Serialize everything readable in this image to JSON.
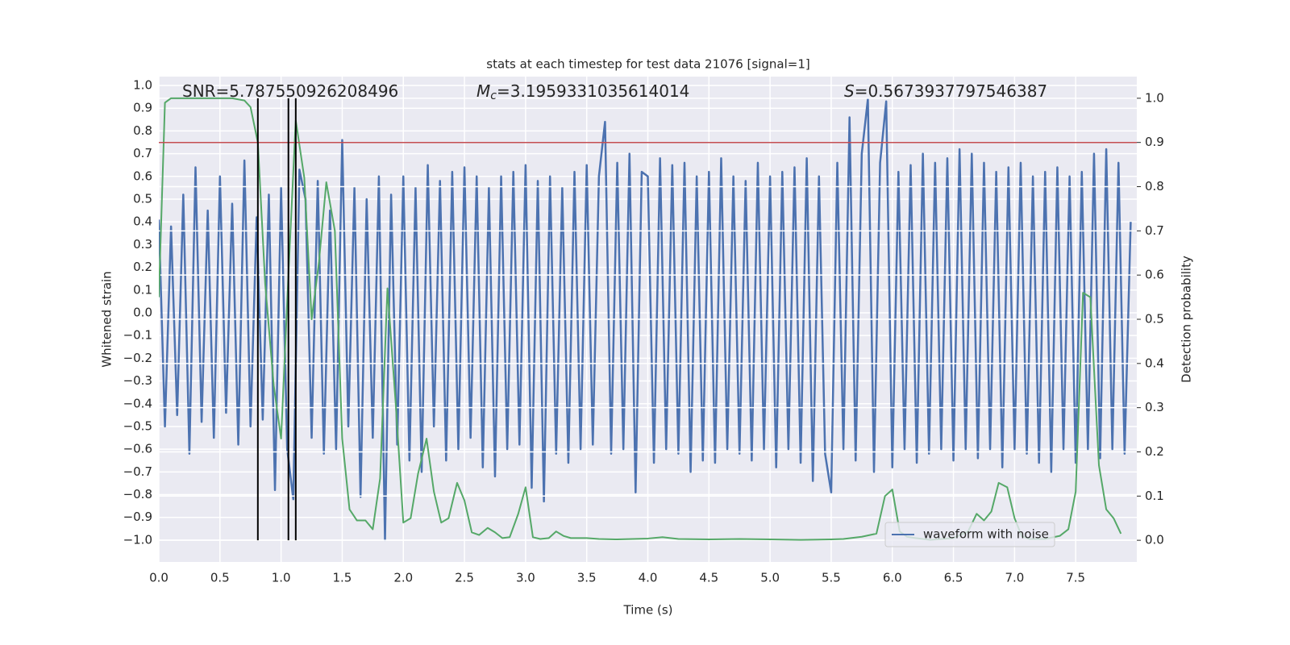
{
  "chart_data": {
    "type": "line",
    "title": "stats at each timestep for test data 21076 [signal=1]",
    "xlabel": "Time (s)",
    "ylabel": "Whitened strain",
    "y2label": "Detection probability",
    "xlim": [
      0,
      8.0
    ],
    "ylim": [
      -1.096,
      1.039
    ],
    "y2lim": [
      -0.049,
      1.049
    ],
    "xticks": [
      {
        "value": 0,
        "label": "0.0"
      },
      {
        "value": 0.5,
        "label": "0.5"
      },
      {
        "value": 1,
        "label": "1.0"
      },
      {
        "value": 1.5,
        "label": "1.5"
      },
      {
        "value": 2,
        "label": "2.0"
      },
      {
        "value": 2.5,
        "label": "2.5"
      },
      {
        "value": 3,
        "label": "3.0"
      },
      {
        "value": 3.5,
        "label": "3.5"
      },
      {
        "value": 4,
        "label": "4.0"
      },
      {
        "value": 4.5,
        "label": "4.5"
      },
      {
        "value": 5,
        "label": "5.0"
      },
      {
        "value": 5.5,
        "label": "5.5"
      },
      {
        "value": 6,
        "label": "6.0"
      },
      {
        "value": 6.5,
        "label": "6.5"
      },
      {
        "value": 7,
        "label": "7.0"
      },
      {
        "value": 7.5,
        "label": "7.5"
      }
    ],
    "yticks": [
      {
        "value": -1,
        "label": "−1.0"
      },
      {
        "value": -0.9,
        "label": "−0.9"
      },
      {
        "value": -0.8,
        "label": "−0.8"
      },
      {
        "value": -0.7,
        "label": "−0.7"
      },
      {
        "value": -0.6,
        "label": "−0.6"
      },
      {
        "value": -0.5,
        "label": "−0.5"
      },
      {
        "value": -0.4,
        "label": "−0.4"
      },
      {
        "value": -0.3,
        "label": "−0.3"
      },
      {
        "value": -0.2,
        "label": "−0.2"
      },
      {
        "value": -0.1,
        "label": "−0.1"
      },
      {
        "value": 0,
        "label": "0.0"
      },
      {
        "value": 0.1,
        "label": "0.1"
      },
      {
        "value": 0.2,
        "label": "0.2"
      },
      {
        "value": 0.3,
        "label": "0.3"
      },
      {
        "value": 0.4,
        "label": "0.4"
      },
      {
        "value": 0.5,
        "label": "0.5"
      },
      {
        "value": 0.6,
        "label": "0.6"
      },
      {
        "value": 0.7,
        "label": "0.7"
      },
      {
        "value": 0.8,
        "label": "0.8"
      },
      {
        "value": 0.9,
        "label": "0.9"
      },
      {
        "value": 1,
        "label": "1.0"
      }
    ],
    "y2ticks": [
      {
        "value": 0,
        "label": "0.0"
      },
      {
        "value": 0.1,
        "label": "0.1"
      },
      {
        "value": 0.2,
        "label": "0.2"
      },
      {
        "value": 0.3,
        "label": "0.3"
      },
      {
        "value": 0.4,
        "label": "0.4"
      },
      {
        "value": 0.5,
        "label": "0.5"
      },
      {
        "value": 0.6,
        "label": "0.6"
      },
      {
        "value": 0.7,
        "label": "0.7"
      },
      {
        "value": 0.8,
        "label": "0.8"
      },
      {
        "value": 0.9,
        "label": "0.9"
      },
      {
        "value": 1,
        "label": "1.0"
      }
    ],
    "grid": true,
    "legend_loc": "lower right",
    "annotations": [
      {
        "text": "SNR=5.787550926208496"
      },
      {
        "symbol": "M",
        "subscript": "c",
        "text": "=3.1959331035614014"
      },
      {
        "symbol": "S",
        "text": "=0.5673937797546387"
      }
    ],
    "hline": {
      "value": 0.9,
      "axis": "y2",
      "color": "#c44e52"
    },
    "vlines": {
      "x": [
        0.81,
        1.06,
        1.12
      ],
      "ymin": 0,
      "ymax": 1,
      "axis": "y2",
      "color": "#000000"
    },
    "series": [
      {
        "name": "waveform with noise",
        "color": "#4c72b0",
        "x": [
          0,
          0.05,
          0.1,
          0.15,
          0.2,
          0.25,
          0.3,
          0.35,
          0.4,
          0.45,
          0.5,
          0.55,
          0.6,
          0.65,
          0.7,
          0.75,
          0.8,
          0.85,
          0.9,
          0.95,
          1,
          1.05,
          1.1,
          1.15,
          1.2,
          1.25,
          1.3,
          1.35,
          1.4,
          1.45,
          1.5,
          1.55,
          1.6,
          1.65,
          1.7,
          1.75,
          1.8,
          1.85,
          1.9,
          1.95,
          2,
          2.05,
          2.1,
          2.15,
          2.2,
          2.25,
          2.3,
          2.35,
          2.4,
          2.45,
          2.5,
          2.55,
          2.6,
          2.65,
          2.7,
          2.75,
          2.8,
          2.85,
          2.9,
          2.95,
          3,
          3.05,
          3.1,
          3.15,
          3.2,
          3.25,
          3.3,
          3.35,
          3.4,
          3.45,
          3.5,
          3.55,
          3.6,
          3.65,
          3.7,
          3.75,
          3.8,
          3.85,
          3.9,
          3.95,
          4,
          4.05,
          4.1,
          4.15,
          4.2,
          4.25,
          4.3,
          4.35,
          4.4,
          4.45,
          4.5,
          4.55,
          4.6,
          4.65,
          4.7,
          4.75,
          4.8,
          4.85,
          4.9,
          4.95,
          5,
          5.05,
          5.1,
          5.15,
          5.2,
          5.25,
          5.3,
          5.35,
          5.4,
          5.45,
          5.5,
          5.55,
          5.6,
          5.65,
          5.7,
          5.75,
          5.8,
          5.85,
          5.9,
          5.95,
          6,
          6.05,
          6.1,
          6.15,
          6.2,
          6.25,
          6.3,
          6.35,
          6.4,
          6.45,
          6.5,
          6.55,
          6.6,
          6.65,
          6.7,
          6.75,
          6.8,
          6.85,
          6.9,
          6.95,
          7,
          7.05,
          7.1,
          7.15,
          7.2,
          7.25,
          7.3,
          7.35,
          7.4,
          7.45,
          7.5,
          7.55,
          7.6,
          7.65,
          7.7,
          7.75,
          7.8,
          7.85,
          7.9,
          7.95
        ],
        "values": [
          0.41,
          -0.5,
          0.38,
          -0.45,
          0.52,
          -0.62,
          0.64,
          -0.48,
          0.45,
          -0.55,
          0.6,
          -0.44,
          0.48,
          -0.58,
          0.67,
          -0.5,
          0.42,
          -0.47,
          0.52,
          -0.78,
          0.55,
          -0.6,
          -0.82,
          0.63,
          0.5,
          -0.55,
          0.58,
          -0.62,
          0.45,
          -0.6,
          0.76,
          -0.5,
          0.55,
          -0.81,
          0.5,
          -0.55,
          0.6,
          -1.0,
          0.52,
          -0.58,
          0.6,
          -0.65,
          0.55,
          -0.7,
          0.65,
          -0.5,
          0.58,
          -0.65,
          0.62,
          -0.6,
          0.64,
          -0.55,
          0.6,
          -0.68,
          0.55,
          -0.72,
          0.6,
          -0.6,
          0.62,
          -0.58,
          0.65,
          -0.77,
          0.58,
          -0.83,
          0.6,
          -0.62,
          0.55,
          -0.66,
          0.62,
          -0.6,
          0.65,
          -0.58,
          0.6,
          0.84,
          -0.62,
          0.66,
          -0.6,
          0.7,
          -0.79,
          0.62,
          0.6,
          -0.66,
          0.68,
          -0.6,
          0.65,
          -0.62,
          0.66,
          -0.7,
          0.6,
          -0.65,
          0.62,
          -0.66,
          0.68,
          -0.6,
          0.6,
          -0.62,
          0.58,
          -0.65,
          0.66,
          -0.6,
          0.6,
          -0.68,
          0.62,
          -0.6,
          0.64,
          -0.66,
          0.68,
          -0.74,
          0.6,
          -0.62,
          -0.79,
          0.66,
          -0.6,
          0.86,
          -0.65,
          0.7,
          0.94,
          -0.7,
          0.66,
          0.93,
          -0.68,
          0.62,
          -0.6,
          0.65,
          -0.66,
          0.7,
          -0.62,
          0.66,
          -0.6,
          0.68,
          -0.65,
          0.72,
          -0.6,
          0.7,
          -0.64,
          0.66,
          -0.6,
          0.62,
          -0.68,
          0.64,
          -0.6,
          0.66,
          -0.62,
          0.6,
          -0.66,
          0.62,
          -0.7,
          0.64,
          -0.6,
          0.6,
          -0.66,
          0.62,
          -0.6,
          0.7,
          -0.64,
          0.72,
          -0.6,
          0.66,
          -0.62,
          0.4
        ]
      },
      {
        "axis": "y2",
        "color": "#55a868",
        "x": [
          0,
          0.05,
          0.1,
          0.6,
          0.7,
          0.75,
          0.81,
          0.87,
          0.94,
          1.0,
          1.06,
          1.12,
          1.19,
          1.25,
          1.31,
          1.37,
          1.44,
          1.5,
          1.56,
          1.62,
          1.69,
          1.75,
          1.81,
          1.87,
          1.94,
          2.0,
          2.06,
          2.12,
          2.19,
          2.25,
          2.31,
          2.37,
          2.44,
          2.5,
          2.56,
          2.62,
          2.69,
          2.75,
          2.81,
          2.87,
          2.94,
          3.0,
          3.06,
          3.12,
          3.19,
          3.25,
          3.31,
          3.37,
          3.5,
          3.6,
          3.75,
          4.0,
          4.12,
          4.25,
          4.5,
          4.75,
          5.0,
          5.25,
          5.5,
          5.6,
          5.75,
          5.87,
          5.94,
          6.0,
          6.06,
          6.12,
          6.19,
          6.31,
          6.5,
          6.62,
          6.69,
          6.75,
          6.81,
          6.87,
          6.94,
          7.0,
          7.06,
          7.12,
          7.25,
          7.37,
          7.44,
          7.5,
          7.56,
          7.62,
          7.69,
          7.75,
          7.81,
          7.87
        ],
        "values": [
          0.55,
          0.99,
          1.0,
          1.0,
          0.995,
          0.98,
          0.9,
          0.58,
          0.35,
          0.23,
          0.6,
          0.95,
          0.82,
          0.5,
          0.63,
          0.81,
          0.7,
          0.23,
          0.07,
          0.045,
          0.045,
          0.025,
          0.14,
          0.57,
          0.3,
          0.04,
          0.05,
          0.15,
          0.23,
          0.11,
          0.04,
          0.05,
          0.13,
          0.09,
          0.018,
          0.012,
          0.028,
          0.018,
          0.005,
          0.007,
          0.06,
          0.12,
          0.007,
          0.003,
          0.005,
          0.02,
          0.01,
          0.005,
          0.005,
          0.003,
          0.002,
          0.004,
          0.007,
          0.003,
          0.002,
          0.003,
          0.002,
          0.001,
          0.002,
          0.003,
          0.008,
          0.015,
          0.1,
          0.115,
          0.02,
          0.008,
          0.005,
          0.001,
          0.005,
          0.02,
          0.06,
          0.045,
          0.065,
          0.13,
          0.12,
          0.05,
          0.009,
          0.003,
          0.003,
          0.01,
          0.025,
          0.11,
          0.56,
          0.55,
          0.17,
          0.07,
          0.05,
          0.015
        ]
      }
    ]
  }
}
